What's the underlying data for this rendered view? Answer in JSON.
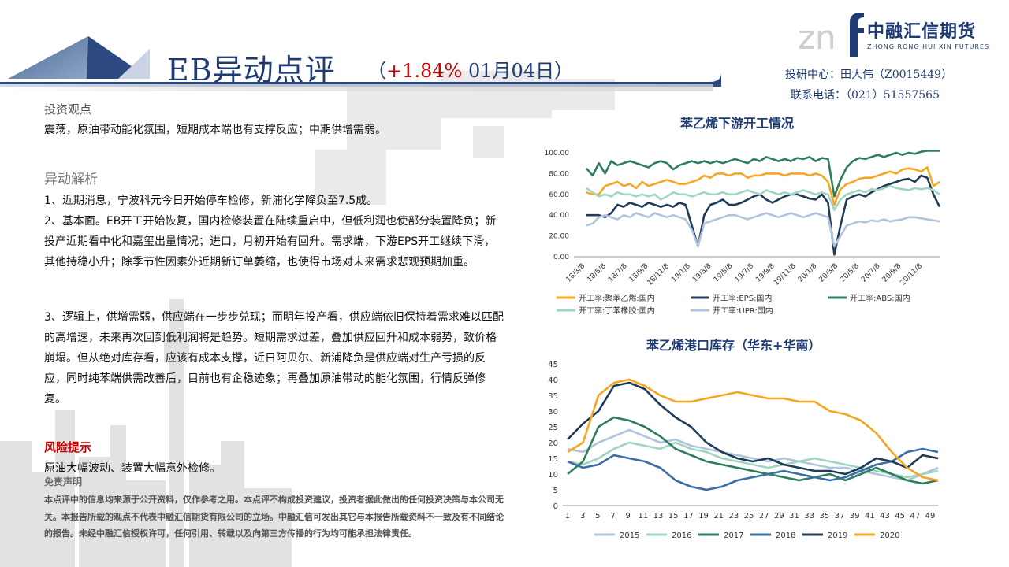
{
  "header": {
    "title": "EB异动点评",
    "paren_open": "（",
    "change": "+1.84%",
    "date": " 01月04日）"
  },
  "logo": {
    "cn": "中融汇信期货",
    "en": "ZHONG RONG HUI XIN FUTURES"
  },
  "contact": {
    "line1": "投研中心：田大伟（Z0015449）",
    "line2": "联系电话：（021）51557565"
  },
  "sections": {
    "view_title": "投资观点",
    "view_text": "震荡，原油带动能化氛围，短期成本端也有支撑反应；中期供增需弱。",
    "analysis_title": "异动解析",
    "p1": "1、近期消息，宁波科元今日开始停车检修，新浦化学降负至7.5成。",
    "p2": "2、基本面。EB开工开始恢复，国内检修装置在陆续重启中，但低利润也使部分装置降负；新投产近期看中化和嘉玺出量情况；进口，月初开始有回升。需求端，下游EPS开工继续下滑，其他持稳小升；除季节性因素外近期新订单萎缩，也使得市场对未来需求悲观预期加重。",
    "p3": "3、逻辑上，供增需弱，供应端在一步步兑现；而明年投产看，供应端依旧保持着需求难以匹配的高增速，未来再次回到低利润将是趋势。短期需求过差，叠加供应回升和成本弱势，致价格崩塌。但从绝对库存看，应该有成本支撑，近日阿贝尔、新浦降负是供应端对生产亏损的反应，同时纯苯端供需改善后，目前也有企稳迹象；再叠加原油带动的能化氛围，行情反弹修复。",
    "risk_title": "风险提示",
    "risk_text": "原油大幅波动、装置大幅意外检修。",
    "disclaimer_title": "免责声明",
    "disclaimer_text": "本点评中的信息均来源于公开资料，仅作参考之用。本点评不构成投资建议，投资者据此做出的任何投资决策与本公司无关。本报告所载的观点不代表中融汇信期货有限公司的立场。中融汇信可发出其它与本报告所载资料不一致及有不同结论的报告。未经中融汇信授权许可，任何引用、转载以及向第三方传播的行为均可能承担法律责任。"
  },
  "colors": {
    "navy": "#1f3b73",
    "red": "#cc0000"
  },
  "chart_data": [
    {
      "type": "line",
      "title": "苯乙烯下游开工情况",
      "ylim": [
        0,
        100
      ],
      "yticks": [
        "100.00",
        "80.00",
        "60.00",
        "40.00",
        "20.00",
        "0.00"
      ],
      "x_labels": [
        "18/3/8",
        "18/5/8",
        "18/7/8",
        "18/9/8",
        "18/11/8",
        "19/1/8",
        "19/3/8",
        "19/5/8",
        "19/7/8",
        "19/9/8",
        "19/11/8",
        "20/1/8",
        "20/3/8",
        "20/5/8",
        "20/7/8",
        "20/9/8",
        "20/11/8"
      ],
      "legend_position": "bottom",
      "series": [
        {
          "name": "开工率:聚苯乙烯:国内",
          "color": "#f5a623",
          "values": [
            62,
            60,
            60,
            68,
            70,
            72,
            68,
            70,
            66,
            72,
            68,
            70,
            72,
            74,
            72,
            70,
            70,
            72,
            74,
            78,
            76,
            80,
            80,
            78,
            80,
            80,
            76,
            78,
            78,
            80,
            80,
            80,
            78,
            80,
            80,
            80,
            78,
            80,
            78,
            72,
            50,
            65,
            70,
            72,
            75,
            76,
            76,
            78,
            80,
            82,
            80,
            84,
            85,
            84,
            82,
            86,
            68,
            72
          ]
        },
        {
          "name": "开工率:EPS:国内",
          "color": "#1f3b57",
          "values": [
            40,
            40,
            40,
            38,
            42,
            50,
            48,
            52,
            50,
            48,
            52,
            50,
            48,
            50,
            48,
            52,
            50,
            30,
            10,
            40,
            50,
            52,
            55,
            50,
            50,
            52,
            55,
            58,
            60,
            55,
            52,
            55,
            58,
            60,
            60,
            58,
            56,
            55,
            60,
            52,
            2,
            30,
            55,
            58,
            60,
            58,
            62,
            65,
            68,
            70,
            72,
            74,
            75,
            72,
            78,
            76,
            60,
            48
          ]
        },
        {
          "name": "开工率:ABS:国内",
          "color": "#2e7d5b",
          "values": [
            85,
            78,
            90,
            80,
            92,
            88,
            90,
            92,
            90,
            88,
            86,
            90,
            92,
            90,
            84,
            88,
            90,
            92,
            90,
            92,
            90,
            92,
            90,
            92,
            94,
            92,
            90,
            94,
            92,
            96,
            94,
            92,
            94,
            92,
            95,
            94,
            96,
            92,
            95,
            94,
            58,
            74,
            86,
            92,
            95,
            94,
            96,
            98,
            96,
            98,
            100,
            98,
            100,
            99,
            101,
            102,
            102,
            102
          ]
        },
        {
          "name": "开工率:丁苯橡胶:国内",
          "color": "#9fd6c2",
          "values": [
            66,
            62,
            58,
            60,
            58,
            62,
            60,
            60,
            58,
            60,
            58,
            60,
            55,
            58,
            62,
            60,
            60,
            58,
            60,
            62,
            60,
            60,
            62,
            60,
            60,
            62,
            64,
            62,
            60,
            64,
            62,
            60,
            62,
            60,
            62,
            64,
            62,
            60,
            62,
            60,
            45,
            55,
            60,
            62,
            64,
            62,
            65,
            64,
            66,
            68,
            66,
            65,
            64,
            66,
            65,
            66,
            64,
            60
          ]
        },
        {
          "name": "开工率:UPR:国内",
          "color": "#b0c4de",
          "values": [
            30,
            32,
            38,
            40,
            38,
            36,
            40,
            38,
            42,
            40,
            38,
            42,
            40,
            38,
            40,
            38,
            36,
            26,
            10,
            32,
            34,
            36,
            38,
            40,
            40,
            38,
            36,
            38,
            40,
            42,
            40,
            38,
            40,
            42,
            40,
            38,
            40,
            42,
            40,
            38,
            10,
            20,
            30,
            32,
            34,
            33,
            35,
            34,
            36,
            34,
            35,
            36,
            38,
            38,
            37,
            36,
            35,
            34
          ]
        }
      ]
    },
    {
      "type": "line",
      "title": "苯乙烯港口库存（华东+华南）",
      "ylim": [
        0,
        45
      ],
      "yticks": [
        "45",
        "40",
        "35",
        "30",
        "25",
        "20",
        "15",
        "10",
        "5",
        "0"
      ],
      "x": [
        1,
        3,
        5,
        7,
        9,
        11,
        13,
        15,
        17,
        19,
        21,
        23,
        25,
        27,
        29,
        31,
        33,
        35,
        37,
        39,
        41,
        43,
        45,
        47,
        49
      ],
      "legend_position": "bottom",
      "series": [
        {
          "name": "2015",
          "color": "#b0c4de",
          "values": [
            18,
            17,
            20,
            22,
            24,
            22,
            20,
            21,
            19,
            18,
            17,
            16,
            15,
            14,
            15,
            14,
            13,
            12,
            12,
            11,
            10,
            9,
            8,
            10,
            12
          ]
        },
        {
          "name": "2016",
          "color": "#9fd6c2",
          "values": [
            14,
            13,
            15,
            18,
            20,
            19,
            18,
            20,
            18,
            17,
            15,
            14,
            13,
            12,
            13,
            14,
            15,
            14,
            13,
            12,
            11,
            10,
            9,
            10,
            11
          ]
        },
        {
          "name": "2017",
          "color": "#2e7d5b",
          "values": [
            10,
            14,
            25,
            28,
            27,
            25,
            22,
            18,
            16,
            14,
            13,
            12,
            11,
            10,
            9,
            8,
            9,
            10,
            8,
            10,
            12,
            10,
            8,
            7,
            8
          ]
        },
        {
          "name": "2018",
          "color": "#3a6ea5",
          "values": [
            14,
            12,
            13,
            16,
            15,
            14,
            12,
            8,
            6,
            5,
            6,
            8,
            9,
            10,
            11,
            10,
            9,
            8,
            9,
            11,
            13,
            14,
            17,
            18,
            17
          ]
        },
        {
          "name": "2019",
          "color": "#1f3b57",
          "values": [
            21,
            26,
            30,
            38,
            39,
            37,
            32,
            28,
            25,
            20,
            17,
            15,
            14,
            15,
            13,
            12,
            11,
            11,
            10,
            12,
            15,
            14,
            12,
            16,
            15
          ]
        },
        {
          "name": "2020",
          "color": "#f5a623",
          "values": [
            17,
            20,
            35,
            39,
            40,
            38,
            35,
            33,
            33,
            34,
            35,
            36,
            35,
            34,
            34,
            33,
            33,
            30,
            29,
            27,
            23,
            17,
            12,
            9,
            8
          ]
        }
      ]
    }
  ]
}
